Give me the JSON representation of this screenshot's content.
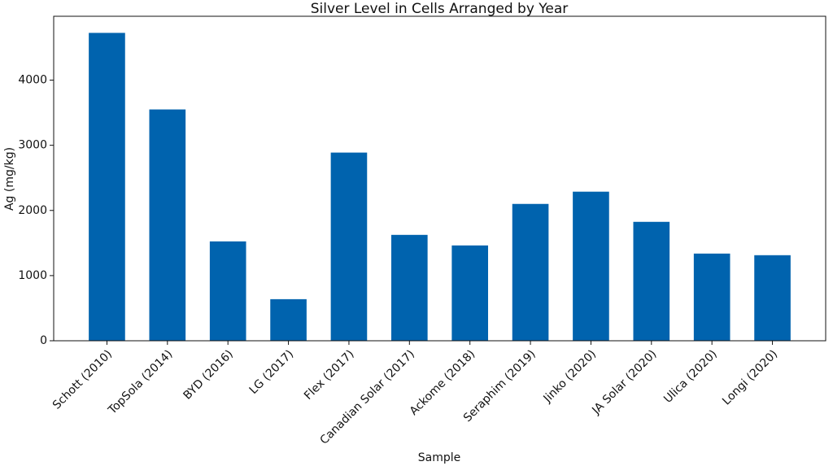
{
  "chart_data": {
    "type": "bar",
    "title": "Silver Level in Cells Arranged by Year",
    "x_label": "Sample",
    "y_label": "Ag (mg/kg)",
    "categories": [
      "Schott (2010)",
      "TopSola (2014)",
      "BYD (2016)",
      "LG (2017)",
      "Flex (2017)",
      "Canadian Solar (2017)",
      "Ackome (2018)",
      "Seraphim (2019)",
      "Jinko (2020)",
      "JA Solar (2020)",
      "Ulica (2020)",
      "Longi (2020)"
    ],
    "values": [
      4725,
      3550,
      1525,
      638,
      2888,
      1625,
      1463,
      2100,
      2288,
      1825,
      1338,
      1313
    ],
    "color": "#0063ae",
    "ylim": [
      0,
      4980
    ],
    "yticks": [
      0,
      1000,
      2000,
      3000,
      4000
    ],
    "grid": false
  }
}
